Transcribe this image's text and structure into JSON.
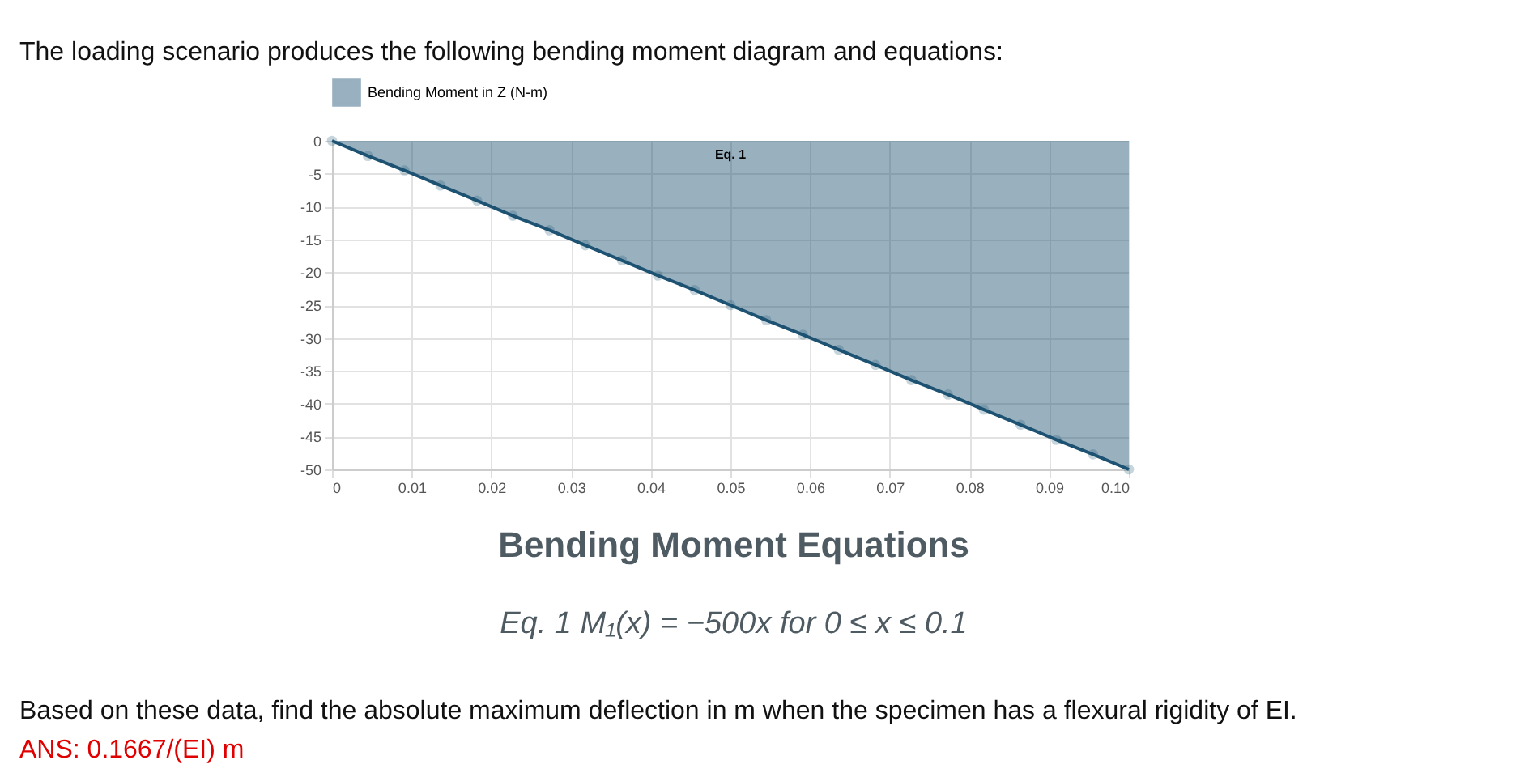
{
  "chart_data": {
    "type": "area",
    "title": "The loading scenario produces the following bending moment diagram and equations:",
    "x": [
      0,
      0.0045,
      0.0091,
      0.0136,
      0.0182,
      0.0227,
      0.0273,
      0.0318,
      0.0364,
      0.0409,
      0.0455,
      0.05,
      0.0545,
      0.0591,
      0.0636,
      0.0682,
      0.0727,
      0.0773,
      0.0818,
      0.0864,
      0.0909,
      0.0955,
      0.1
    ],
    "series": [
      {
        "name": "Bending Moment in Z (N-m)",
        "color": "#1d5272",
        "values": [
          0,
          -2.3,
          -4.5,
          -6.8,
          -9.1,
          -11.4,
          -13.6,
          -15.9,
          -18.2,
          -20.5,
          -22.7,
          -25,
          -27.3,
          -29.5,
          -31.8,
          -34.1,
          -36.4,
          -38.6,
          -40.9,
          -43.2,
          -45.5,
          -47.7,
          -50
        ]
      }
    ],
    "xlim": [
      0,
      0.1
    ],
    "xticks": [
      0,
      0.01,
      0.02,
      0.03,
      0.04,
      0.05,
      0.06,
      0.07,
      0.08,
      0.09,
      {
        "value": 0.1,
        "label": "0.10"
      }
    ],
    "ylim": [
      -50,
      0
    ],
    "yticks": [
      0,
      -5,
      -10,
      -15,
      -20,
      -25,
      -30,
      -35,
      -40,
      -45,
      -50
    ],
    "grid": true,
    "legend": "top",
    "marker": "circle",
    "annotations": [
      "Eq. 1",
      "Bending Moment Equations",
      "Eq. 1    M₁(x) = −500x for 0 ≤ x ≤ 0.1",
      "Based on these data, find the absolute maximum deflection in m when the specimen has a flexural rigidity of EI.",
      "ANS: 0.1667/(EI) m"
    ]
  }
}
